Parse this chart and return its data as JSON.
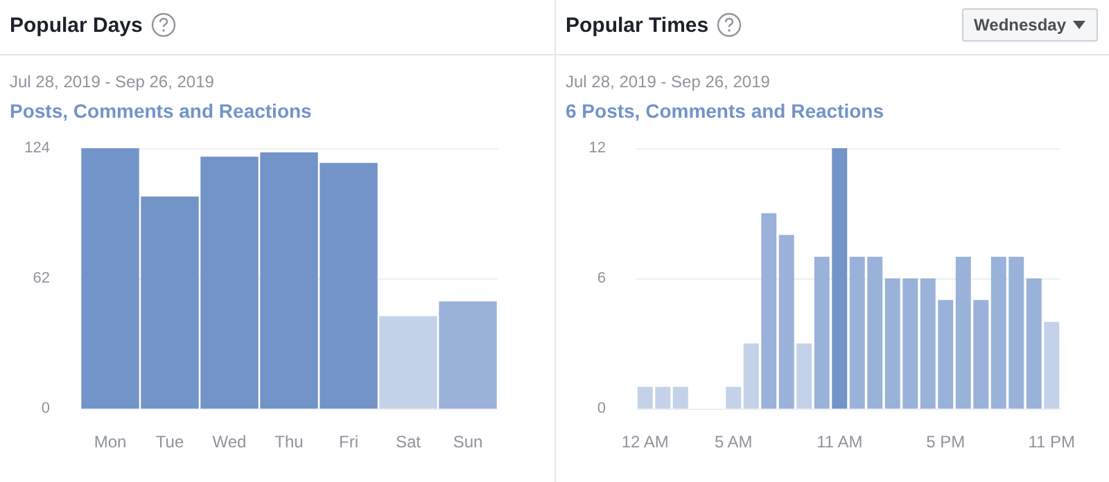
{
  "chart_data": [
    {
      "type": "bar",
      "title": "Popular Days",
      "subtitle": "Jul 28, 2019 - Sep 26, 2019",
      "ylabel": "Posts, Comments and Reactions",
      "categories": [
        "Mon",
        "Tue",
        "Wed",
        "Thu",
        "Fri",
        "Sat",
        "Sun"
      ],
      "values": [
        124,
        101,
        120,
        122,
        117,
        44,
        51
      ],
      "colors": [
        "#7394c9",
        "#7394c9",
        "#7394c9",
        "#7394c9",
        "#7394c9",
        "#c3d2e8",
        "#9ab2d9"
      ],
      "ylim": [
        0,
        124
      ],
      "yticks": [
        0,
        62,
        124
      ],
      "grid": "y"
    },
    {
      "type": "bar",
      "title": "Popular Times",
      "subtitle": "Jul 28, 2019 - Sep 26, 2019",
      "ylabel": "6 Posts, Comments and Reactions",
      "annotations": [
        "Wednesday"
      ],
      "categories": [
        "12 AM",
        null,
        null,
        null,
        null,
        "5 AM",
        null,
        null,
        null,
        null,
        null,
        "11 AM",
        null,
        null,
        null,
        null,
        null,
        "5 PM",
        null,
        null,
        null,
        null,
        null,
        "11 PM"
      ],
      "values": [
        1,
        1,
        1,
        0,
        0,
        1,
        3,
        9,
        8,
        3,
        7,
        12,
        7,
        7,
        6,
        6,
        6,
        5,
        7,
        5,
        7,
        7,
        6,
        4
      ],
      "colors": [
        "#c3d2e8",
        "#c3d2e8",
        "#c3d2e8",
        "#c3d2e8",
        "#c3d2e8",
        "#c3d2e8",
        "#c3d2e8",
        "#9ab2d9",
        "#9ab2d9",
        "#c3d2e8",
        "#9ab2d9",
        "#7394c9",
        "#9ab2d9",
        "#9ab2d9",
        "#9ab2d9",
        "#9ab2d9",
        "#9ab2d9",
        "#9ab2d9",
        "#9ab2d9",
        "#9ab2d9",
        "#9ab2d9",
        "#9ab2d9",
        "#9ab2d9",
        "#c3d2e8"
      ],
      "ylim": [
        0,
        12
      ],
      "yticks": [
        0,
        6,
        12
      ],
      "grid": "y"
    }
  ]
}
